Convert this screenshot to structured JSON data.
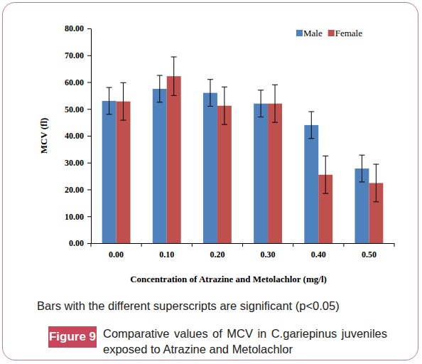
{
  "chart_data": {
    "type": "bar",
    "x_label": "Concentration of Atrazine and Metolachlor (mg/l)",
    "y_label": "MCV (fl)",
    "annotations": [
      "Bars with the different superscripts are significant (p<0.05)"
    ],
    "figure_label": "Figure 9",
    "caption": "Comparative values of MCV in C.gariepinus juveniles exposed to Atrazine and Metolachlor",
    "categories": [
      "0.00",
      "0.10",
      "0.20",
      "0.30",
      "0.40",
      "0.50"
    ],
    "series": [
      {
        "name": "Male",
        "color": "#4f81bd",
        "values": [
          53.0,
          57.5,
          56.0,
          52.0,
          44.0,
          27.8
        ],
        "errors": [
          5.0,
          5.0,
          5.0,
          5.0,
          5.0,
          5.0
        ]
      },
      {
        "name": "Female",
        "color": "#c0504d",
        "values": [
          52.8,
          62.2,
          51.2,
          52.0,
          25.5,
          22.4
        ],
        "errors": [
          7.0,
          7.2,
          7.0,
          7.0,
          7.0,
          7.0
        ]
      }
    ],
    "ylim": [
      0,
      80
    ],
    "yticks": [
      {
        "value": 0,
        "label": "0.00"
      },
      {
        "value": 10,
        "label": "10.00"
      },
      {
        "value": 20,
        "label": "20.00"
      },
      {
        "value": 30,
        "label": "30.00"
      },
      {
        "value": 40,
        "label": "40.00"
      },
      {
        "value": 50,
        "label": "50.00"
      },
      {
        "value": 60,
        "label": "60.00"
      },
      {
        "value": 70,
        "label": "70.00"
      },
      {
        "value": 80,
        "label": "80.00"
      }
    ],
    "grid": false,
    "legend": "top-right"
  }
}
